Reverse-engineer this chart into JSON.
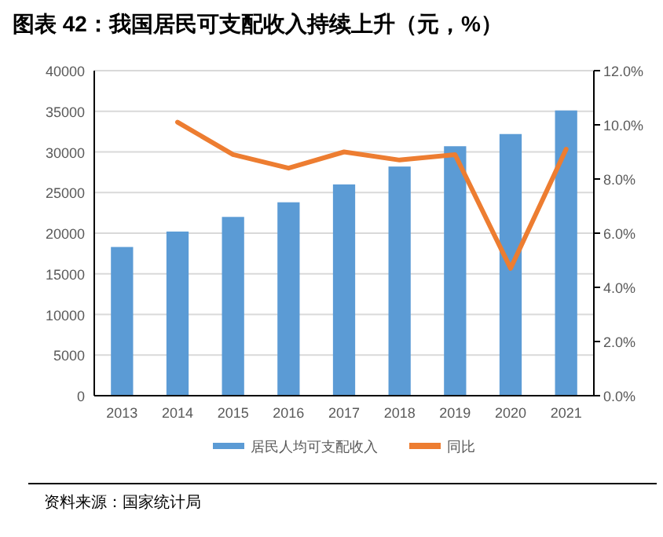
{
  "chart_data": {
    "type": "bar",
    "title": "图表 42：我国居民可支配收入持续上升（元，%）",
    "categories": [
      "2013",
      "2014",
      "2015",
      "2016",
      "2017",
      "2018",
      "2019",
      "2020",
      "2021"
    ],
    "series": [
      {
        "name": "居民人均可支配收入",
        "color": "#5b9bd5",
        "values": [
          18300,
          20200,
          22000,
          23800,
          26000,
          28200,
          30700,
          32200,
          35100
        ]
      },
      {
        "name": "同比",
        "type": "line",
        "axis": "y2",
        "color": "#ed7d31",
        "values": [
          null,
          10.1,
          8.9,
          8.4,
          9.0,
          8.7,
          8.9,
          4.7,
          9.1
        ]
      }
    ],
    "ylim": [
      0,
      40000
    ],
    "yticks": [
      0,
      5000,
      10000,
      15000,
      20000,
      25000,
      30000,
      35000,
      40000
    ],
    "y2lim": [
      0,
      12
    ],
    "y2ticks": [
      {
        "value": 0,
        "label": "0.0%"
      },
      {
        "value": 2,
        "label": "2.0%"
      },
      {
        "value": 4,
        "label": "4.0%"
      },
      {
        "value": 6,
        "label": "6.0%"
      },
      {
        "value": 8,
        "label": "8.0%"
      },
      {
        "value": 10,
        "label": "10.0%"
      },
      {
        "value": 12,
        "label": "12.0%"
      }
    ],
    "grid": "y",
    "legend": "bottom",
    "marker": "none",
    "annotations": [
      "资料来源：国家统计局"
    ]
  }
}
